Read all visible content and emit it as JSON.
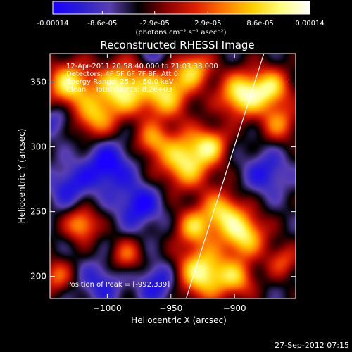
{
  "colorbar": {
    "tick_labels": [
      "-0.00014",
      "-8.6e-05",
      "-2.9e-05",
      "2.9e-05",
      "8.6e-05",
      "0.00014"
    ],
    "tick_values": [
      -0.00014,
      -8.6e-05,
      -2.9e-05,
      2.9e-05,
      8.6e-05,
      0.00014
    ],
    "range": [
      -0.00014,
      0.00014
    ],
    "unit_label": "(photons cm⁻² s⁻¹ asec⁻²)",
    "stops": [
      "#1a00ff",
      "#2a1fd0",
      "#5a3fb0",
      "#000000",
      "#8a0000",
      "#e02000",
      "#ff7a00",
      "#ffd000",
      "#ffff80",
      "#ffffff"
    ]
  },
  "chart_data": {
    "type": "heatmap",
    "title": "Reconstructed RHESSI Image",
    "xlabel": "Heliocentric X (arcsec)",
    "ylabel": "Heliocentric Y (arcsec)",
    "xlim": [
      -1045,
      -852
    ],
    "ylim": [
      183,
      372
    ],
    "x_ticks": [
      -1000,
      -950,
      -900
    ],
    "x_tick_labels": [
      "−1000",
      "−950",
      "−900"
    ],
    "y_ticks": [
      200,
      250,
      300,
      350
    ],
    "y_tick_labels": [
      "200",
      "250",
      "300",
      "350"
    ],
    "info_lines": [
      "12-Apr-2011 20:58:40.000 to 21:03:38.000",
      "Detectors: 4F 5F 6F 7F 8F, Att 0",
      "Energy Range: 25.0 - 50.0 keV",
      "Clean    Total counts: 8.2e+03"
    ],
    "peak_label": "Position of Peak = [-992,339]",
    "peak": [
      -992,
      339
    ],
    "limb_line": [
      [
        -938,
        183
      ],
      [
        -877,
        372
      ]
    ],
    "blobs": [
      {
        "x": -1030,
        "y": 348,
        "amp": 0.9,
        "s": 12
      },
      {
        "x": -1010,
        "y": 322,
        "amp": 0.65,
        "s": 11
      },
      {
        "x": -990,
        "y": 345,
        "amp": 0.95,
        "s": 14
      },
      {
        "x": -955,
        "y": 342,
        "amp": 0.85,
        "s": 14
      },
      {
        "x": -932,
        "y": 360,
        "amp": 0.7,
        "s": 10
      },
      {
        "x": -965,
        "y": 305,
        "amp": 0.55,
        "s": 9
      },
      {
        "x": -938,
        "y": 290,
        "amp": 0.95,
        "s": 15
      },
      {
        "x": -918,
        "y": 302,
        "amp": 0.6,
        "s": 9
      },
      {
        "x": -895,
        "y": 340,
        "amp": 0.95,
        "s": 12
      },
      {
        "x": -872,
        "y": 345,
        "amp": 0.8,
        "s": 11
      },
      {
        "x": -865,
        "y": 318,
        "amp": 0.55,
        "s": 10
      },
      {
        "x": -1020,
        "y": 240,
        "amp": 0.7,
        "s": 9
      },
      {
        "x": -1040,
        "y": 200,
        "amp": 0.5,
        "s": 9
      },
      {
        "x": -985,
        "y": 216,
        "amp": 0.5,
        "s": 9
      },
      {
        "x": -932,
        "y": 238,
        "amp": 0.7,
        "s": 10
      },
      {
        "x": -910,
        "y": 250,
        "amp": 0.75,
        "s": 11
      },
      {
        "x": -893,
        "y": 232,
        "amp": 0.9,
        "s": 12
      },
      {
        "x": -925,
        "y": 203,
        "amp": 1.0,
        "s": 14
      },
      {
        "x": -898,
        "y": 198,
        "amp": 0.6,
        "s": 10
      },
      {
        "x": -862,
        "y": 212,
        "amp": 0.45,
        "s": 9
      },
      {
        "x": -1000,
        "y": 285,
        "amp": -0.55,
        "s": 13
      },
      {
        "x": -1030,
        "y": 270,
        "amp": -0.4,
        "s": 11
      },
      {
        "x": -975,
        "y": 255,
        "amp": -0.5,
        "s": 12
      },
      {
        "x": -1005,
        "y": 195,
        "amp": -0.35,
        "s": 12
      },
      {
        "x": -960,
        "y": 195,
        "amp": -0.45,
        "s": 11
      },
      {
        "x": -875,
        "y": 280,
        "amp": -0.4,
        "s": 12
      },
      {
        "x": -1040,
        "y": 320,
        "amp": -0.3,
        "s": 9
      },
      {
        "x": -960,
        "y": 370,
        "amp": -0.3,
        "s": 9
      }
    ]
  },
  "footer": {
    "timestamp": "27-Sep-2012 07:15"
  }
}
